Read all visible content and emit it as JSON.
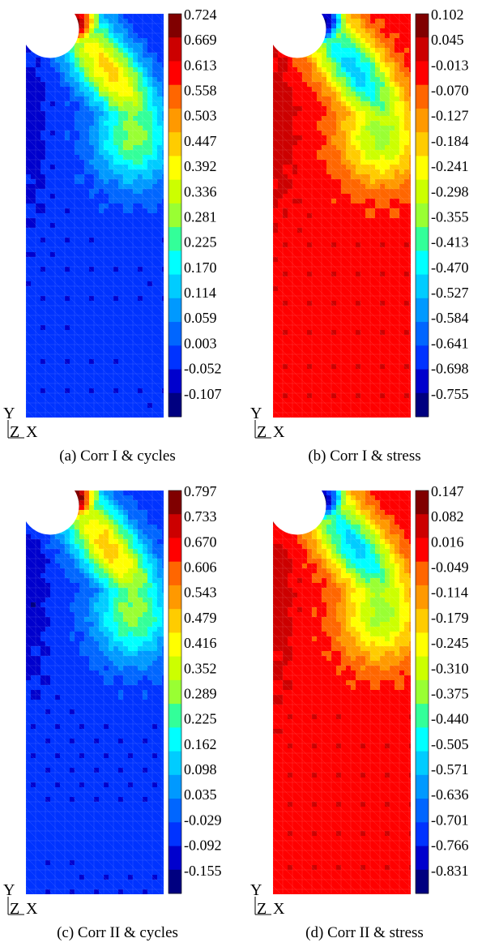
{
  "figure": {
    "panels": [
      {
        "caption": "(a) Corr I & cycles",
        "scheme": "positive",
        "axis_labels": {
          "y": "Y",
          "z": "Z",
          "x": "X"
        }
      },
      {
        "caption": "(b) Corr I & stress",
        "scheme": "negative",
        "axis_labels": {
          "y": "Y",
          "z": "Z",
          "x": "X"
        }
      },
      {
        "caption": "(c) Corr II & cycles",
        "scheme": "positive",
        "axis_labels": {
          "y": "Y",
          "z": "Z",
          "x": "X"
        }
      },
      {
        "caption": "(d) Corr II & stress",
        "scheme": "negative",
        "axis_labels": {
          "y": "Y",
          "z": "Z",
          "x": "X"
        }
      }
    ],
    "colors": [
      "#000080",
      "#0000CD",
      "#0033FF",
      "#0066FF",
      "#0099FF",
      "#00CCFF",
      "#00FFFF",
      "#33FF99",
      "#99FF33",
      "#CCFF00",
      "#FFFF00",
      "#FFCC00",
      "#FF9900",
      "#FF6600",
      "#FF0000",
      "#CC0000",
      "#800000"
    ]
  },
  "chart_data": [
    {
      "type": "heatmap",
      "title": "",
      "colorbar_ticks": [
        "0.724",
        "0.669",
        "0.613",
        "0.558",
        "0.503",
        "0.447",
        "0.392",
        "0.336",
        "0.281",
        "0.225",
        "0.170",
        "0.114",
        "0.059",
        "0.003",
        "-0.052",
        "-0.107"
      ],
      "range": [
        -0.107,
        0.724
      ]
    },
    {
      "type": "heatmap",
      "title": "",
      "colorbar_ticks": [
        "0.102",
        "0.045",
        "-0.013",
        "-0.070",
        "-0.127",
        "-0.184",
        "-0.241",
        "-0.298",
        "-0.355",
        "-0.413",
        "-0.470",
        "-0.527",
        "-0.584",
        "-0.641",
        "-0.698",
        "-0.755"
      ],
      "range": [
        -0.755,
        0.102
      ]
    },
    {
      "type": "heatmap",
      "title": "",
      "colorbar_ticks": [
        "0.797",
        "0.733",
        "0.670",
        "0.606",
        "0.543",
        "0.479",
        "0.416",
        "0.352",
        "0.289",
        "0.225",
        "0.162",
        "0.098",
        "0.035",
        "-0.029",
        "-0.092",
        "-0.155"
      ],
      "range": [
        -0.155,
        0.797
      ]
    },
    {
      "type": "heatmap",
      "title": "",
      "colorbar_ticks": [
        "0.147",
        "0.082",
        "0.016",
        "-0.049",
        "-0.114",
        "-0.179",
        "-0.245",
        "-0.310",
        "-0.375",
        "-0.440",
        "-0.505",
        "-0.571",
        "-0.636",
        "-0.701",
        "-0.766",
        "-0.831"
      ],
      "range": [
        -0.831,
        0.147
      ]
    }
  ]
}
